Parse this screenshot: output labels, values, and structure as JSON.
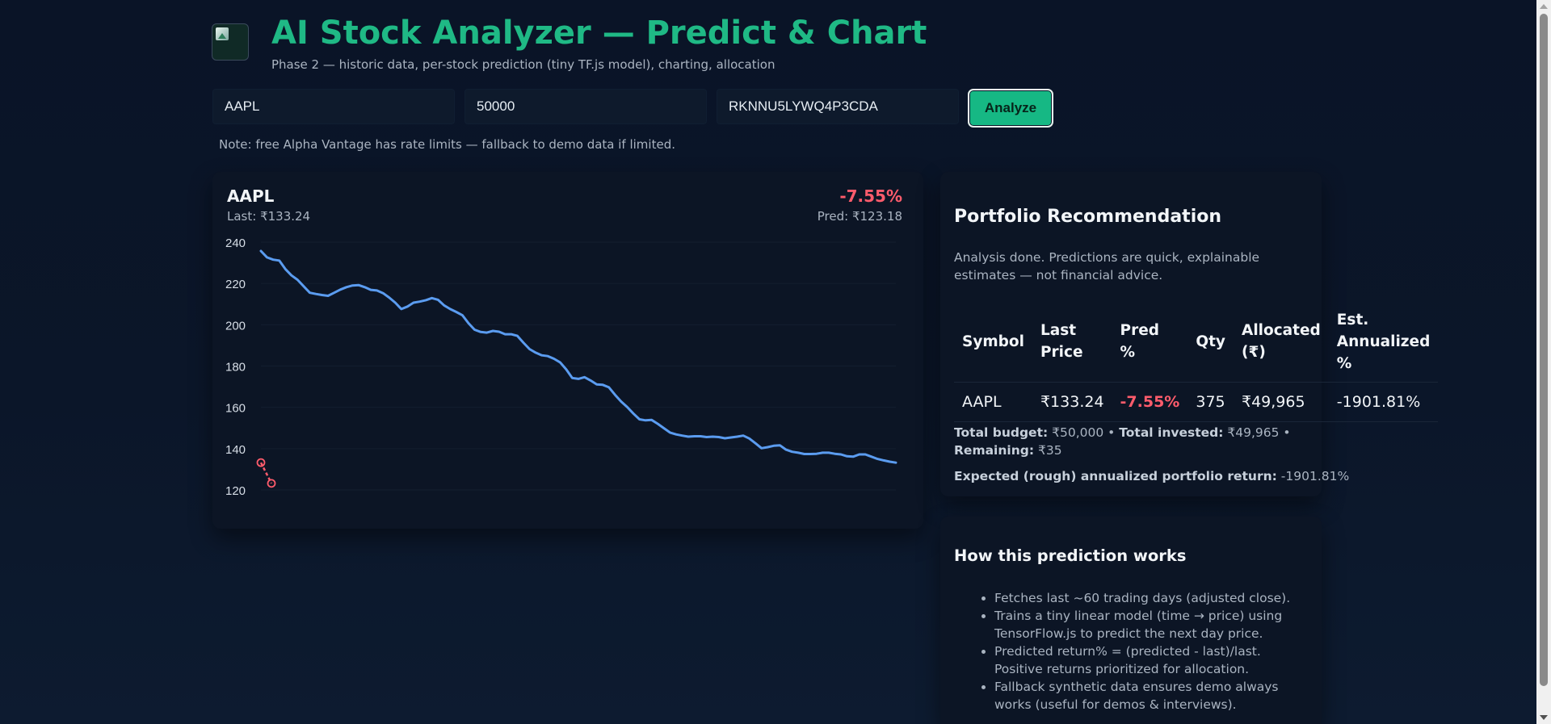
{
  "header": {
    "logo": "broken-image-icon",
    "title": "AI Stock Analyzer — Predict & Chart",
    "subtitle": "Phase 2 — historic data, per-stock prediction (tiny TF.js model), charting, allocation"
  },
  "form": {
    "symbols_value": "AAPL",
    "budget_value": "50000",
    "api_key_value": "RKNNU5LYWQ4P3CDA",
    "analyze_label": "Analyze",
    "note": "Note: free Alpha Vantage has rate limits — fallback to demo data if limited."
  },
  "stock_card": {
    "symbol": "AAPL",
    "last": "Last: ₹133.24",
    "change": "-7.55%",
    "pred": "Pred: ₹123.18"
  },
  "chart_data": {
    "type": "line",
    "title": "",
    "xlabel": "",
    "ylabel": "",
    "ylim": [
      115,
      245
    ],
    "y_ticks": [
      120,
      140,
      160,
      180,
      200,
      220,
      240
    ],
    "grid": true,
    "series": [
      {
        "color": "#5b9cf0",
        "values": [
          235.7,
          232.6,
          231.5,
          231.1,
          227.0,
          223.9,
          221.8,
          218.6,
          215.5,
          214.9,
          214.4,
          214.0,
          215.5,
          217.0,
          218.2,
          219.0,
          219.2,
          218.2,
          216.9,
          216.6,
          215.3,
          213.2,
          210.7,
          207.6,
          208.8,
          210.7,
          211.2,
          211.9,
          212.9,
          212.1,
          209.4,
          207.6,
          206.2,
          204.6,
          200.7,
          197.6,
          196.5,
          196.2,
          197.0,
          196.6,
          195.4,
          195.4,
          194.6,
          191.3,
          188.2,
          186.5,
          185.2,
          184.8,
          183.5,
          181.8,
          178.4,
          174.2,
          173.8,
          174.6,
          173.0,
          171.1,
          170.9,
          169.7,
          166.1,
          162.8,
          160.1,
          157.0,
          154.2,
          153.7,
          153.9,
          152.0,
          149.9,
          147.8,
          146.9,
          146.3,
          145.8,
          146.0,
          146.0,
          145.6,
          145.8,
          145.6,
          145.0,
          145.4,
          145.8,
          146.3,
          144.9,
          142.6,
          140.2,
          140.7,
          141.4,
          141.6,
          139.5,
          138.5,
          138.0,
          137.4,
          137.4,
          137.5,
          138.0,
          138.0,
          137.5,
          137.2,
          136.3,
          136.1,
          137.2,
          137.2,
          136.1,
          135.0,
          134.3,
          133.7,
          133.2
        ]
      },
      {
        "color": "#ff5c6c",
        "dashed": true,
        "values": [
          133.24,
          123.18
        ]
      }
    ]
  },
  "portfolio": {
    "title": "Portfolio Recommendation",
    "description": "Analysis done. Predictions are quick, explainable estimates — not financial advice.",
    "columns": {
      "symbol": "Symbol",
      "last_price_1": "Last",
      "last_price_2": "Price",
      "pred_1": "Pred",
      "pred_2": "%",
      "qty": "Qty",
      "allocated_1": "Allocated",
      "allocated_2": "(₹)",
      "est_1": "Est.",
      "est_2": "Annualized",
      "est_3": "%"
    },
    "rows": [
      {
        "symbol": "AAPL",
        "last_price": "₹133.24",
        "pred": "-7.55%",
        "qty": "375",
        "allocated": "₹49,965",
        "annualized": "-1901.81%"
      }
    ],
    "summary": {
      "total_budget_label": "Total budget:",
      "total_budget_value": "₹50,000",
      "total_invested_label": "Total invested:",
      "total_invested_value": "₹49,965",
      "remaining_label": "Remaining:",
      "remaining_value": "₹35",
      "separator": "•"
    },
    "expected_label": "Expected (rough) annualized portfolio return:",
    "expected_value": "-1901.81%",
    "colors": {
      "negative": "#ff5c6c",
      "accent": "#1fb985"
    }
  },
  "howto": {
    "title": "How this prediction works",
    "items": [
      "Fetches last ~60 trading days (adjusted close).",
      "Trains a tiny linear model (time → price) using TensorFlow.js to predict the next day price.",
      "Predicted return% = (predicted - last)/last. Positive returns prioritized for allocation.",
      "Fallback synthetic data ensures demo always works (useful for demos & interviews)."
    ]
  }
}
